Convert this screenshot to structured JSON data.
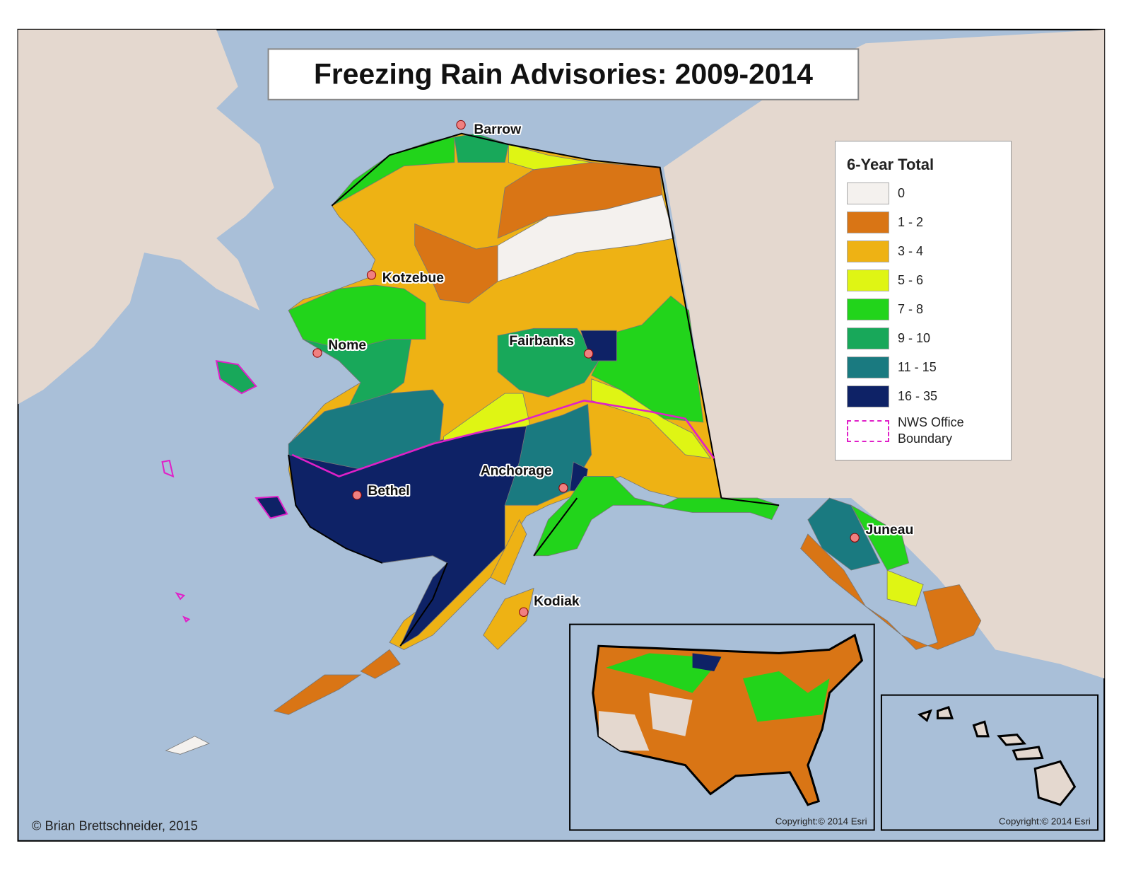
{
  "header": {
    "title": "Freezing Rain Advisories: 2009-2014"
  },
  "legend": {
    "title": "6-Year Total",
    "items": [
      {
        "label": "0",
        "color": "#f4f1ee"
      },
      {
        "label": "1 - 2",
        "color": "#d97515"
      },
      {
        "label": "3 - 4",
        "color": "#eeb214"
      },
      {
        "label": "5 - 6",
        "color": "#dff514"
      },
      {
        "label": "7 - 8",
        "color": "#22d41b"
      },
      {
        "label": "9 - 10",
        "color": "#18a85a"
      },
      {
        "label": "11 - 15",
        "color": "#1a7a80"
      },
      {
        "label": "16 - 35",
        "color": "#0e2266"
      }
    ],
    "boundary": {
      "label": "NWS Office Boundary",
      "color": "#e020c8"
    }
  },
  "places": [
    {
      "name": "Barrow"
    },
    {
      "name": "Kotzebue"
    },
    {
      "name": "Nome"
    },
    {
      "name": "Fairbanks"
    },
    {
      "name": "Anchorage"
    },
    {
      "name": "Bethel"
    },
    {
      "name": "Kodiak"
    },
    {
      "name": "Juneau"
    }
  ],
  "insets": [
    {
      "credit": "Copyright:© 2014 Esri"
    },
    {
      "credit": "Copyright:© 2014 Esri"
    }
  ],
  "footer": {
    "credit": "© Brian Brettschneider, 2015"
  }
}
